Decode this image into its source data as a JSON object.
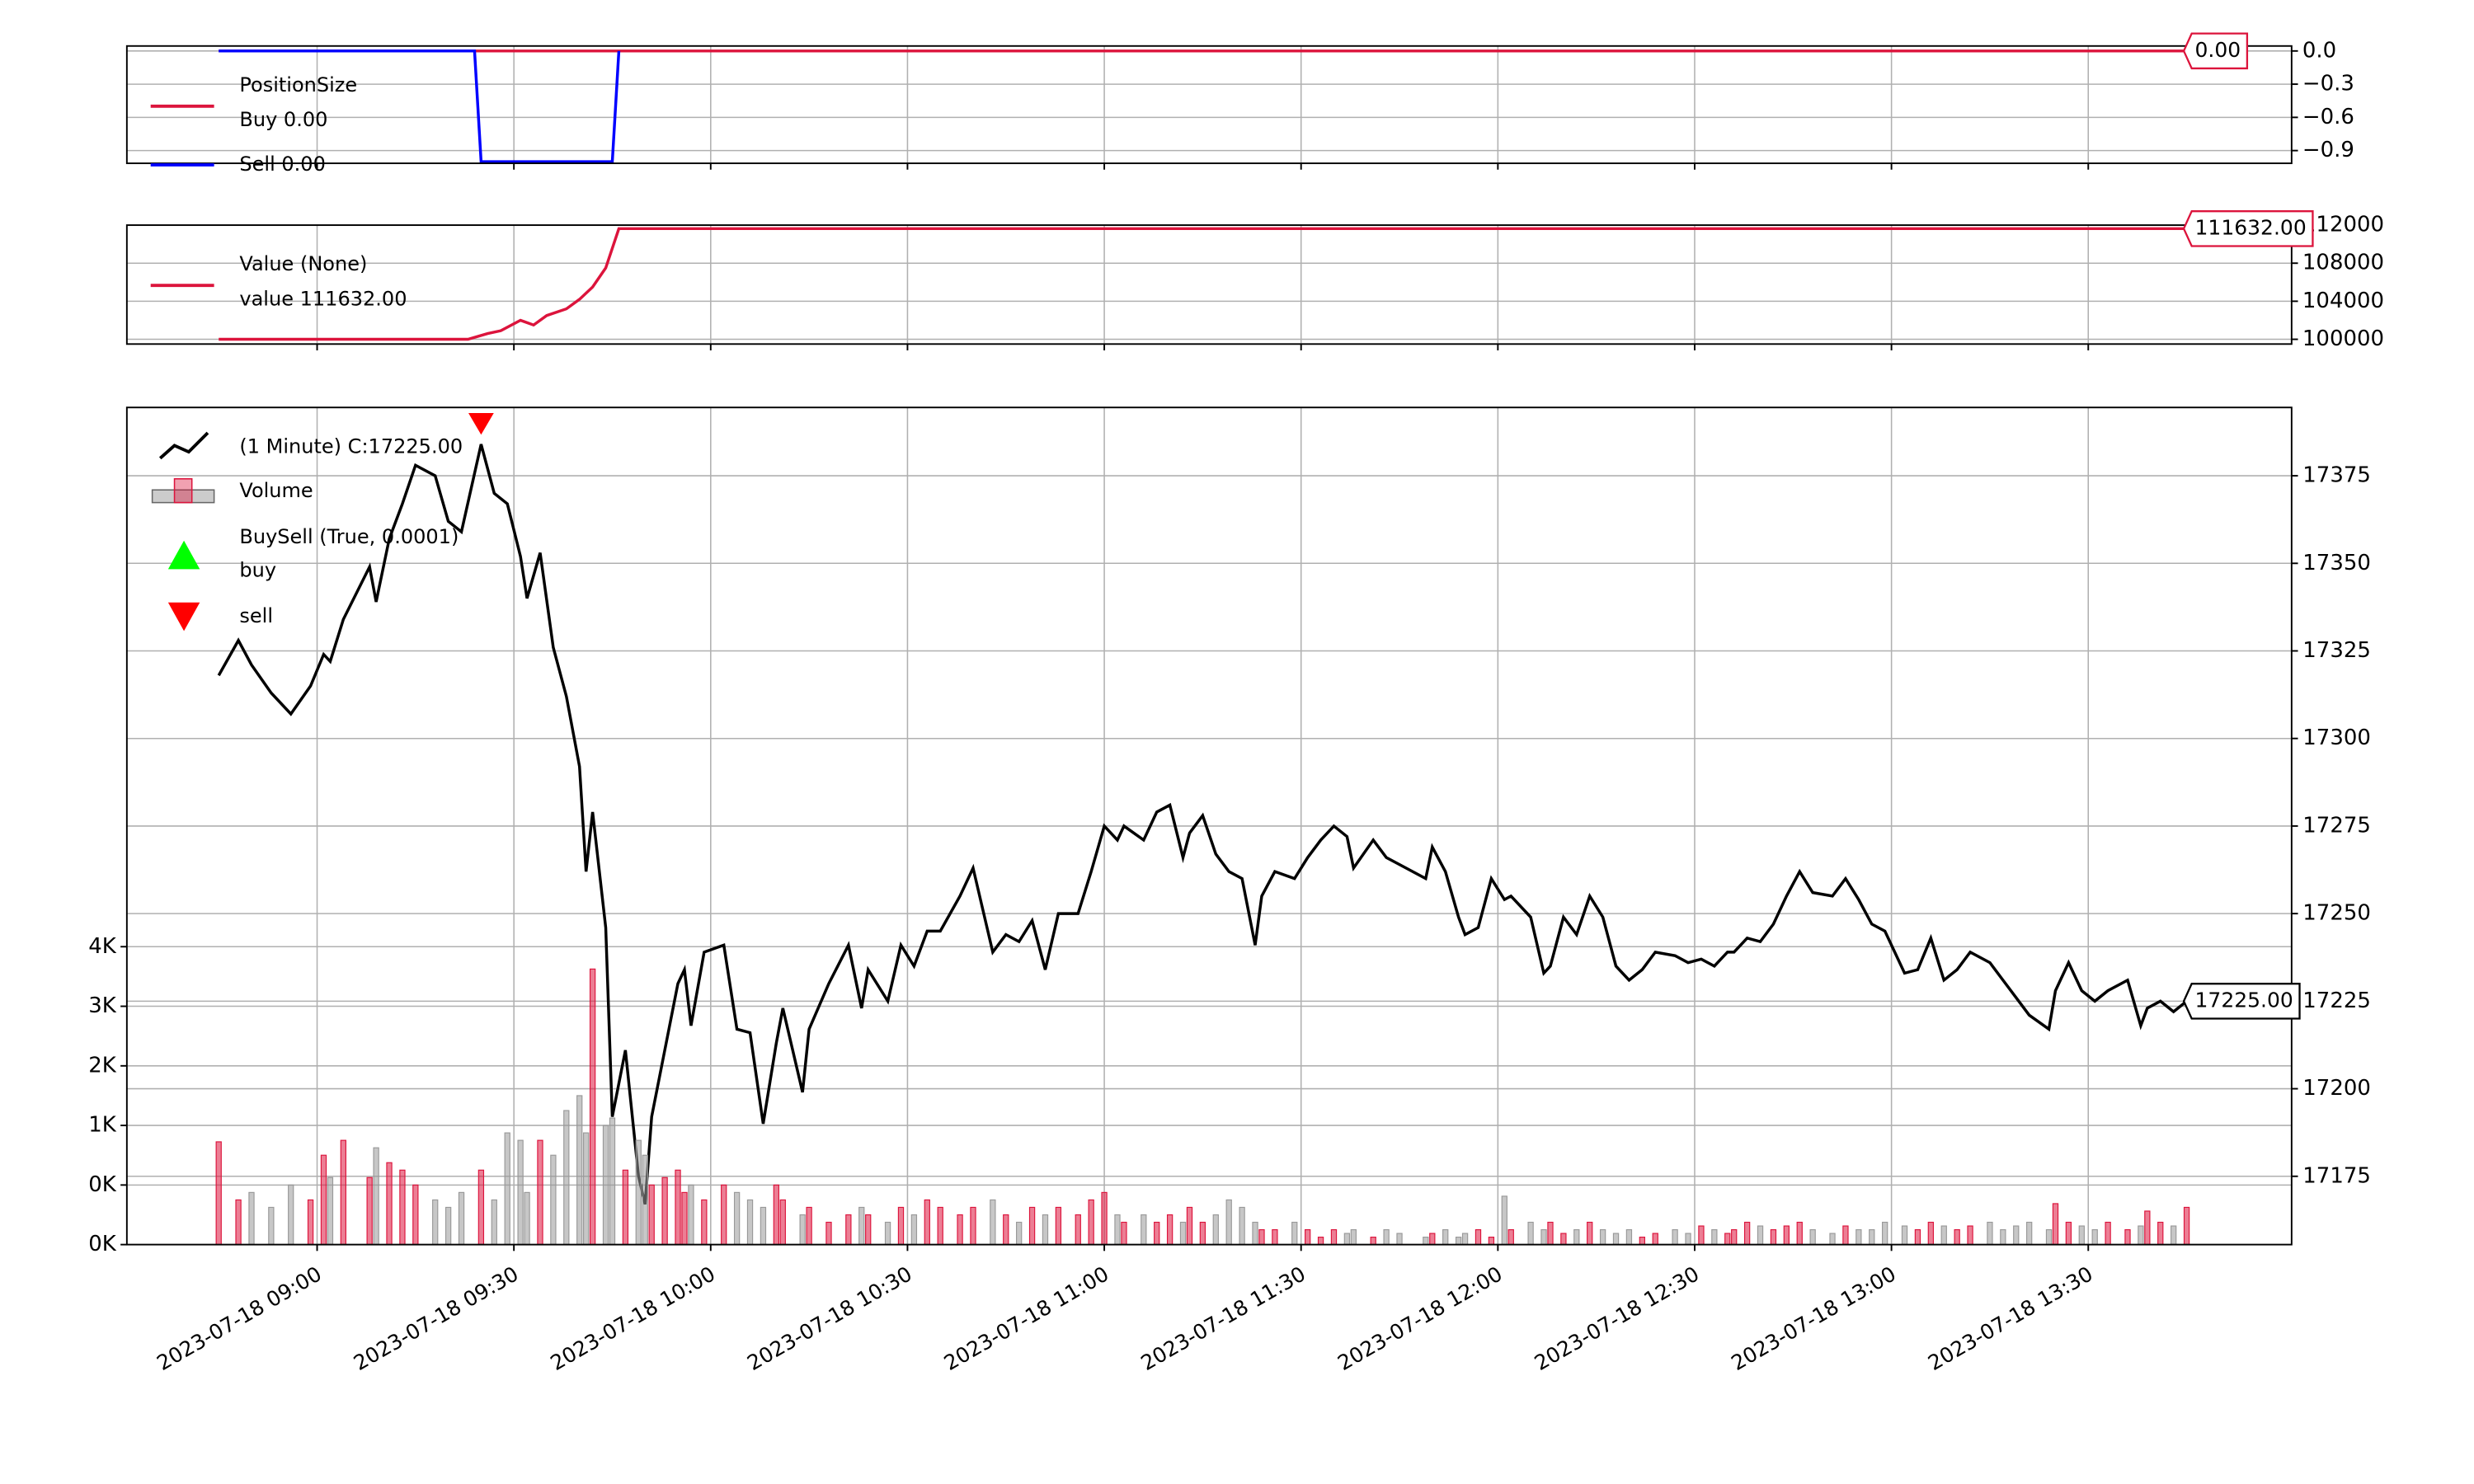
{
  "chart_data": [
    {
      "type": "line",
      "legend_title": "PositionSize",
      "last_label": "0.00",
      "grid": true,
      "xlim": [
        "2023-07-18 08:31",
        "2023-07-18 14:01"
      ],
      "ylim": [
        -1.015,
        0.045
      ],
      "yticks": [
        {
          "value": 0,
          "label": "0.0"
        },
        {
          "value": -0.3,
          "label": "−0.3"
        },
        {
          "value": -0.6,
          "label": "−0.6"
        },
        {
          "value": -0.9,
          "label": "−0.9"
        }
      ],
      "series": [
        {
          "name": "Buy 0.00",
          "color": "#dc143c",
          "x": [
            "2023-07-18 08:45",
            "2023-07-18 13:45"
          ],
          "values": [
            0,
            0
          ]
        },
        {
          "name": "Sell 0.00",
          "color": "#0000ff",
          "x": [
            "2023-07-18 08:45",
            "2023-07-18 09:24",
            "2023-07-18 09:25",
            "2023-07-18 09:45",
            "2023-07-18 09:46"
          ],
          "values": [
            0,
            0,
            -1,
            -1,
            0
          ]
        }
      ]
    },
    {
      "type": "line",
      "legend_title": "Value (None)",
      "last_label": "111632.00",
      "grid": true,
      "xlim": [
        "2023-07-18 08:31",
        "2023-07-18 14:01"
      ],
      "ylim": [
        99500,
        112000
      ],
      "yticks": [
        100000,
        104000,
        108000,
        112000
      ],
      "series": [
        {
          "name": "value 111632.00",
          "color": "#dc143c",
          "x": [
            "2023-07-18 08:45",
            "2023-07-18 09:23",
            "2023-07-18 09:26",
            "2023-07-18 09:28",
            "2023-07-18 09:31",
            "2023-07-18 09:33",
            "2023-07-18 09:35",
            "2023-07-18 09:38",
            "2023-07-18 09:40",
            "2023-07-18 09:42",
            "2023-07-18 09:44",
            "2023-07-18 09:46",
            "2023-07-18 13:45"
          ],
          "values": [
            100000,
            100000,
            100600,
            100900,
            102000,
            101500,
            102500,
            103200,
            104200,
            105500,
            107500,
            111632,
            111632
          ]
        }
      ]
    },
    {
      "type": "line",
      "legend_group": "BuySell (True, 0.0001)",
      "last_label": "17225.00",
      "grid": true,
      "up_color": "#dc143c",
      "down_color": "#999999",
      "xlim": [
        "2023-07-18 08:31",
        "2023-07-18 14:01"
      ],
      "xticks": [
        "2023-07-18 09:00",
        "2023-07-18 09:30",
        "2023-07-18 10:00",
        "2023-07-18 10:30",
        "2023-07-18 11:00",
        "2023-07-18 11:30",
        "2023-07-18 12:00",
        "2023-07-18 12:30",
        "2023-07-18 13:00",
        "2023-07-18 13:30"
      ],
      "ylim": [
        0,
        11240
      ],
      "yticks": [
        {
          "value": 0,
          "label": "0K"
        },
        {
          "value": 800,
          "label": "0K"
        },
        {
          "value": 1600,
          "label": "1K"
        },
        {
          "value": 2400,
          "label": "2K"
        },
        {
          "value": 3200,
          "label": "3K"
        },
        {
          "value": 4000,
          "label": "4K"
        }
      ],
      "y2lim": [
        17155.5,
        17394.5
      ],
      "y2ticks": [
        17175,
        17200,
        17225,
        17250,
        17275,
        17300,
        17325,
        17350,
        17375
      ],
      "x": [
        "2023-07-18 08:45",
        "2023-07-18 08:48",
        "2023-07-18 08:50",
        "2023-07-18 08:53",
        "2023-07-18 08:56",
        "2023-07-18 08:59",
        "2023-07-18 09:01",
        "2023-07-18 09:02",
        "2023-07-18 09:04",
        "2023-07-18 09:08",
        "2023-07-18 09:09",
        "2023-07-18 09:11",
        "2023-07-18 09:13",
        "2023-07-18 09:15",
        "2023-07-18 09:18",
        "2023-07-18 09:20",
        "2023-07-18 09:22",
        "2023-07-18 09:25",
        "2023-07-18 09:27",
        "2023-07-18 09:29",
        "2023-07-18 09:31",
        "2023-07-18 09:32",
        "2023-07-18 09:34",
        "2023-07-18 09:36",
        "2023-07-18 09:38",
        "2023-07-18 09:40",
        "2023-07-18 09:41",
        "2023-07-18 09:42",
        "2023-07-18 09:44",
        "2023-07-18 09:45",
        "2023-07-18 09:47",
        "2023-07-18 09:49",
        "2023-07-18 09:50",
        "2023-07-18 09:51",
        "2023-07-18 09:53",
        "2023-07-18 09:55",
        "2023-07-18 09:56",
        "2023-07-18 09:57",
        "2023-07-18 09:59",
        "2023-07-18 10:02",
        "2023-07-18 10:04",
        "2023-07-18 10:06",
        "2023-07-18 10:08",
        "2023-07-18 10:10",
        "2023-07-18 10:11",
        "2023-07-18 10:14",
        "2023-07-18 10:15",
        "2023-07-18 10:18",
        "2023-07-18 10:21",
        "2023-07-18 10:23",
        "2023-07-18 10:24",
        "2023-07-18 10:27",
        "2023-07-18 10:29",
        "2023-07-18 10:31",
        "2023-07-18 10:33",
        "2023-07-18 10:35",
        "2023-07-18 10:38",
        "2023-07-18 10:40",
        "2023-07-18 10:43",
        "2023-07-18 10:45",
        "2023-07-18 10:47",
        "2023-07-18 10:49",
        "2023-07-18 10:51",
        "2023-07-18 10:53",
        "2023-07-18 10:56",
        "2023-07-18 10:58",
        "2023-07-18 11:00",
        "2023-07-18 11:02",
        "2023-07-18 11:03",
        "2023-07-18 11:06",
        "2023-07-18 11:08",
        "2023-07-18 11:10",
        "2023-07-18 11:12",
        "2023-07-18 11:13",
        "2023-07-18 11:15",
        "2023-07-18 11:17",
        "2023-07-18 11:19",
        "2023-07-18 11:21",
        "2023-07-18 11:23",
        "2023-07-18 11:24",
        "2023-07-18 11:26",
        "2023-07-18 11:29",
        "2023-07-18 11:31",
        "2023-07-18 11:33",
        "2023-07-18 11:35",
        "2023-07-18 11:37",
        "2023-07-18 11:38",
        "2023-07-18 11:41",
        "2023-07-18 11:43",
        "2023-07-18 11:45",
        "2023-07-18 11:49",
        "2023-07-18 11:50",
        "2023-07-18 11:52",
        "2023-07-18 11:54",
        "2023-07-18 11:55",
        "2023-07-18 11:57",
        "2023-07-18 11:59",
        "2023-07-18 12:01",
        "2023-07-18 12:02",
        "2023-07-18 12:05",
        "2023-07-18 12:07",
        "2023-07-18 12:08",
        "2023-07-18 12:10",
        "2023-07-18 12:12",
        "2023-07-18 12:14",
        "2023-07-18 12:16",
        "2023-07-18 12:18",
        "2023-07-18 12:20",
        "2023-07-18 12:22",
        "2023-07-18 12:24",
        "2023-07-18 12:27",
        "2023-07-18 12:29",
        "2023-07-18 12:31",
        "2023-07-18 12:33",
        "2023-07-18 12:35",
        "2023-07-18 12:36",
        "2023-07-18 12:38",
        "2023-07-18 12:40",
        "2023-07-18 12:42",
        "2023-07-18 12:44",
        "2023-07-18 12:46",
        "2023-07-18 12:48",
        "2023-07-18 12:51",
        "2023-07-18 12:53",
        "2023-07-18 12:55",
        "2023-07-18 12:57",
        "2023-07-18 12:59",
        "2023-07-18 13:02",
        "2023-07-18 13:04",
        "2023-07-18 13:06",
        "2023-07-18 13:08",
        "2023-07-18 13:10",
        "2023-07-18 13:12",
        "2023-07-18 13:15",
        "2023-07-18 13:17",
        "2023-07-18 13:19",
        "2023-07-18 13:21",
        "2023-07-18 13:24",
        "2023-07-18 13:25",
        "2023-07-18 13:27",
        "2023-07-18 13:29",
        "2023-07-18 13:31",
        "2023-07-18 13:33",
        "2023-07-18 13:36",
        "2023-07-18 13:38",
        "2023-07-18 13:39",
        "2023-07-18 13:41",
        "2023-07-18 13:43",
        "2023-07-18 13:45"
      ],
      "series": [
        {
          "name": " (1 Minute) C:17225.00",
          "type": "line",
          "color": "#000000",
          "axis": "y2",
          "values": [
            17318,
            17328,
            17321,
            17313,
            17307,
            17315,
            17324,
            17322,
            17334,
            17349,
            17339,
            17357,
            17367,
            17378,
            17375,
            17362,
            17359,
            17384,
            17370,
            17367,
            17352,
            17340,
            17353,
            17326,
            17312,
            17292,
            17262,
            17279,
            17246,
            17192,
            17211,
            17175,
            17167,
            17192,
            17211,
            17230,
            17234,
            17218,
            17239,
            17241,
            17217,
            17216,
            17190,
            17213,
            17223,
            17199,
            17217,
            17230,
            17241,
            17223,
            17234,
            17225,
            17241,
            17235,
            17245,
            17245,
            17255,
            17263,
            17239,
            17244,
            17242,
            17248,
            17234,
            17250,
            17250,
            17262,
            17275,
            17271,
            17275,
            17271,
            17279,
            17281,
            17266,
            17273,
            17278,
            17267,
            17262,
            17260,
            17241,
            17255,
            17262,
            17260,
            17266,
            17271,
            17275,
            17272,
            17263,
            17271,
            17266,
            17264,
            17260,
            17269,
            17262,
            17249,
            17244,
            17246,
            17260,
            17254,
            17255,
            17249,
            17233,
            17235,
            17249,
            17244,
            17255,
            17249,
            17235,
            17231,
            17234,
            17239,
            17238,
            17236,
            17237,
            17235,
            17239,
            17239,
            17243,
            17242,
            17247,
            17255,
            17262,
            17256,
            17255,
            17260,
            17254,
            17247,
            17245,
            17233,
            17234,
            17243,
            17231,
            17234,
            17239,
            17236,
            17231,
            17226,
            17221,
            17217,
            17228,
            17236,
            17228,
            17225,
            17228,
            17231,
            17218,
            17223,
            17225,
            17222,
            17225
          ]
        },
        {
          "name": "Volume",
          "type": "bar",
          "values": [
            1380,
            600,
            700,
            500,
            800,
            600,
            1200,
            900,
            1400,
            900,
            1300,
            1100,
            1000,
            800,
            600,
            500,
            700,
            1000,
            600,
            1500,
            1400,
            700,
            1400,
            1200,
            1800,
            2000,
            1500,
            3700,
            1600,
            1700,
            1000,
            1400,
            1200,
            800,
            900,
            1000,
            700,
            800,
            600,
            800,
            700,
            600,
            500,
            800,
            600,
            400,
            500,
            300,
            400,
            500,
            400,
            300,
            500,
            400,
            600,
            500,
            400,
            500,
            600,
            400,
            300,
            500,
            400,
            500,
            400,
            600,
            700,
            400,
            300,
            400,
            300,
            400,
            300,
            500,
            300,
            400,
            600,
            500,
            300,
            200,
            200,
            300,
            200,
            100,
            200,
            150,
            200,
            100,
            200,
            150,
            100,
            150,
            200,
            100,
            150,
            200,
            100,
            650,
            200,
            300,
            200,
            300,
            150,
            200,
            300,
            200,
            150,
            200,
            100,
            150,
            200,
            150,
            250,
            200,
            150,
            200,
            300,
            250,
            200,
            250,
            300,
            200,
            150,
            250,
            200,
            200,
            300,
            250,
            200,
            300,
            250,
            200,
            250,
            300,
            200,
            250,
            300,
            200,
            550,
            300,
            250,
            200,
            300,
            200,
            250,
            450,
            300,
            250,
            500
          ]
        },
        {
          "name": "buy",
          "type": "marker",
          "symbol": "triangle-up",
          "color": "#00ff00",
          "axis": "y2",
          "x": [],
          "values": []
        },
        {
          "name": "sell",
          "type": "marker",
          "symbol": "triangle-down",
          "color": "#ff0000",
          "axis": "y2",
          "x": [
            "2023-07-18 09:25"
          ],
          "values": [
            17390
          ]
        }
      ]
    }
  ]
}
